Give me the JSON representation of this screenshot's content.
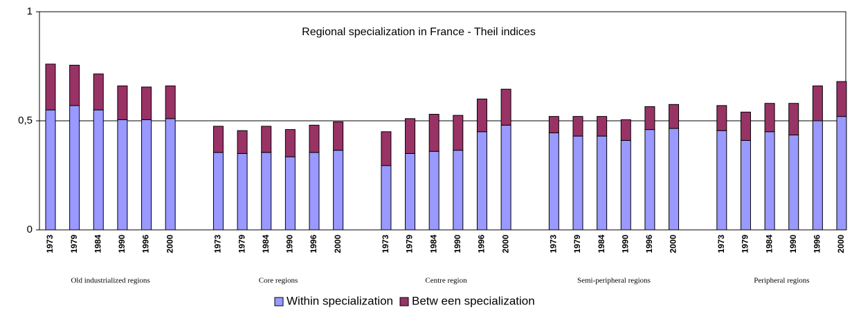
{
  "chart_data": {
    "type": "bar",
    "stacked": true,
    "title": "Regional specialization in France - Theil indices",
    "groups": [
      {
        "label": "Old industrialized regions",
        "categories": [
          "1973",
          "1979",
          "1984",
          "1990",
          "1996",
          "2000"
        ]
      },
      {
        "label": "Core regions",
        "categories": [
          "1973",
          "1979",
          "1984",
          "1990",
          "1996",
          "2000"
        ]
      },
      {
        "label": "Centre region",
        "categories": [
          "1973",
          "1979",
          "1984",
          "1990",
          "1996",
          "2000"
        ]
      },
      {
        "label": "Semi-peripheral regions",
        "categories": [
          "1973",
          "1979",
          "1984",
          "1990",
          "1996",
          "2000"
        ]
      },
      {
        "label": "Peripheral regions",
        "categories": [
          "1973",
          "1979",
          "1984",
          "1990",
          "1996",
          "2000"
        ]
      }
    ],
    "series": [
      {
        "name": "Within specialization",
        "color": "#9999ff",
        "values": [
          0.55,
          0.57,
          0.55,
          0.505,
          0.505,
          0.51,
          0.355,
          0.35,
          0.355,
          0.335,
          0.355,
          0.365,
          0.295,
          0.35,
          0.36,
          0.365,
          0.45,
          0.48,
          0.445,
          0.43,
          0.43,
          0.41,
          0.46,
          0.465,
          0.455,
          0.41,
          0.45,
          0.435,
          0.5,
          0.52
        ]
      },
      {
        "name": "Betw een specialization",
        "color": "#993366",
        "values": [
          0.21,
          0.185,
          0.165,
          0.155,
          0.15,
          0.15,
          0.12,
          0.105,
          0.12,
          0.125,
          0.125,
          0.13,
          0.155,
          0.16,
          0.17,
          0.16,
          0.15,
          0.165,
          0.075,
          0.09,
          0.09,
          0.095,
          0.105,
          0.11,
          0.115,
          0.13,
          0.13,
          0.145,
          0.16,
          0.16
        ]
      }
    ],
    "ylim": [
      0,
      1
    ],
    "yticks": [
      0,
      {
        "value": 0.5,
        "label": "0,5"
      },
      1
    ],
    "grid": true,
    "legend": "bottom"
  }
}
